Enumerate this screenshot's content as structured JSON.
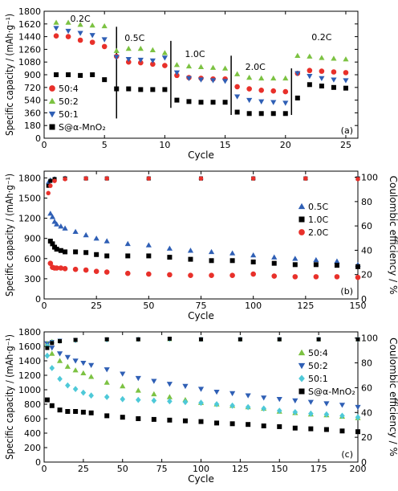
{
  "chart_data": [
    {
      "panel": "(a)",
      "type": "scatter",
      "xlabel": "Cycle",
      "ylabel": "Specific capacity / (mAh·g⁻¹)",
      "xlim": [
        0,
        26
      ],
      "ylim": [
        0,
        1800
      ],
      "xticks": [
        0,
        5,
        10,
        15,
        20,
        25
      ],
      "yticks": [
        0,
        180,
        360,
        540,
        720,
        900,
        1080,
        1260,
        1440,
        1620,
        1800
      ],
      "legend_position": "bottom-left",
      "rate_labels": [
        {
          "text": "0.2C",
          "x": 3,
          "y": 1650
        },
        {
          "text": "0.5C",
          "x": 7.5,
          "y": 1380
        },
        {
          "text": "1.0C",
          "x": 12.5,
          "y": 1150
        },
        {
          "text": "2.0C",
          "x": 17.5,
          "y": 970
        },
        {
          "text": "0.2C",
          "x": 23,
          "y": 1390
        }
      ],
      "dividers": [
        {
          "x": 6,
          "ymin": 280,
          "ymax": 1580
        },
        {
          "x": 10.5,
          "ymin": 430,
          "ymax": 1380
        },
        {
          "x": 15.5,
          "ymin": 330,
          "ymax": 1170
        },
        {
          "x": 20.5,
          "ymin": 330,
          "ymax": 990
        }
      ],
      "series": [
        {
          "name": "50:4",
          "marker": "circle",
          "color": "#e8302a",
          "x": [
            1,
            2,
            3,
            4,
            5,
            6,
            7,
            8,
            9,
            10,
            11,
            12,
            13,
            14,
            15,
            16,
            17,
            18,
            19,
            20,
            21,
            22,
            23,
            24,
            25
          ],
          "y": [
            1450,
            1440,
            1390,
            1360,
            1300,
            1160,
            1080,
            1070,
            1050,
            1030,
            890,
            860,
            850,
            840,
            840,
            730,
            700,
            680,
            670,
            660,
            920,
            960,
            950,
            940,
            930
          ]
        },
        {
          "name": "50:2",
          "marker": "triangle-up",
          "color": "#7cc242",
          "x": [
            1,
            2,
            3,
            4,
            5,
            6,
            7,
            8,
            9,
            10,
            11,
            12,
            13,
            14,
            15,
            16,
            17,
            18,
            19,
            20,
            21,
            22,
            23,
            24,
            25
          ],
          "y": [
            1640,
            1640,
            1610,
            1600,
            1590,
            1240,
            1270,
            1270,
            1250,
            1210,
            1040,
            1020,
            1010,
            1000,
            990,
            910,
            860,
            850,
            850,
            850,
            1170,
            1160,
            1140,
            1130,
            1120
          ]
        },
        {
          "name": "50:1",
          "marker": "triangle-down",
          "color": "#2f5fb5",
          "x": [
            1,
            2,
            3,
            4,
            5,
            6,
            7,
            8,
            9,
            10,
            11,
            12,
            13,
            14,
            15,
            16,
            17,
            18,
            19,
            20,
            21,
            22,
            23,
            24,
            25
          ],
          "y": [
            1560,
            1520,
            1490,
            1460,
            1400,
            1150,
            1120,
            1110,
            1100,
            1140,
            930,
            850,
            830,
            820,
            810,
            590,
            540,
            520,
            510,
            500,
            920,
            880,
            850,
            830,
            820
          ]
        },
        {
          "name": "S@α-MnO₂",
          "marker": "square",
          "color": "#000000",
          "x": [
            1,
            2,
            3,
            4,
            5,
            6,
            7,
            8,
            9,
            10,
            11,
            12,
            13,
            14,
            15,
            16,
            17,
            18,
            19,
            20,
            21,
            22,
            23,
            24,
            25
          ],
          "y": [
            900,
            900,
            890,
            900,
            830,
            700,
            700,
            690,
            690,
            690,
            540,
            520,
            510,
            510,
            510,
            370,
            350,
            350,
            350,
            350,
            570,
            760,
            740,
            720,
            710
          ]
        }
      ]
    },
    {
      "panel": "(b)",
      "type": "scatter",
      "xlabel": "Cycle",
      "ylabel": "Specific capacity / (mAh·g⁻¹)",
      "y2label": "Coulombic efficiency / %",
      "xlim": [
        0,
        150
      ],
      "ylim": [
        0,
        1900
      ],
      "y2lim": [
        0,
        105
      ],
      "xticks": [
        0,
        25,
        50,
        75,
        100,
        125,
        150
      ],
      "yticks": [
        0,
        300,
        600,
        900,
        1200,
        1500,
        1800
      ],
      "y2ticks": [
        0,
        20,
        40,
        60,
        80,
        100
      ],
      "legend_position": "right",
      "series": [
        {
          "name": "0.5C",
          "marker": "triangle-up",
          "color": "#2f5fb5",
          "x": [
            3,
            4,
            5,
            6,
            8,
            10,
            15,
            20,
            25,
            30,
            40,
            50,
            60,
            70,
            80,
            90,
            100,
            110,
            120,
            130,
            140,
            150
          ],
          "y": [
            1270,
            1220,
            1150,
            1110,
            1080,
            1050,
            1000,
            950,
            900,
            860,
            820,
            800,
            750,
            720,
            700,
            680,
            650,
            620,
            600,
            580,
            560,
            510
          ]
        },
        {
          "name": "1.0C",
          "marker": "square",
          "color": "#000000",
          "x": [
            3,
            4,
            5,
            6,
            8,
            10,
            15,
            20,
            25,
            30,
            40,
            50,
            60,
            70,
            80,
            90,
            100,
            110,
            120,
            130,
            140,
            150
          ],
          "y": [
            860,
            820,
            770,
            740,
            720,
            700,
            700,
            690,
            660,
            640,
            640,
            640,
            620,
            590,
            570,
            570,
            550,
            530,
            510,
            510,
            500,
            480
          ]
        },
        {
          "name": "2.0C",
          "marker": "circle",
          "color": "#e8302a",
          "x": [
            3,
            4,
            5,
            6,
            8,
            10,
            15,
            20,
            25,
            30,
            40,
            50,
            60,
            70,
            80,
            90,
            100,
            110,
            120,
            130,
            140,
            150
          ],
          "y": [
            530,
            470,
            460,
            460,
            460,
            450,
            440,
            430,
            410,
            400,
            380,
            370,
            360,
            350,
            350,
            350,
            370,
            340,
            330,
            330,
            330,
            320
          ]
        },
        {
          "name": "0.5C CE",
          "axis": "y2",
          "marker": "triangle-up",
          "color": "#2f5fb5",
          "x": [
            2,
            3,
            5,
            10,
            20,
            30,
            50,
            75,
            100,
            125,
            150
          ],
          "y": [
            96,
            98,
            99,
            99.5,
            99.5,
            99.5,
            99.5,
            99.5,
            99.5,
            99.5,
            99.5
          ]
        },
        {
          "name": "1.0C CE",
          "axis": "y2",
          "marker": "square",
          "color": "#000000",
          "x": [
            2,
            3,
            5,
            10,
            20,
            30,
            50,
            75,
            100,
            125,
            150
          ],
          "y": [
            93,
            97,
            98.5,
            99,
            99,
            99,
            99,
            99,
            99,
            99,
            99
          ]
        },
        {
          "name": "2.0C CE",
          "axis": "y2",
          "marker": "circle",
          "color": "#e8302a",
          "x": [
            2,
            3,
            5,
            10,
            20,
            30,
            50,
            75,
            100,
            125,
            150
          ],
          "y": [
            87,
            93,
            97,
            98.5,
            99,
            99,
            99,
            99,
            99,
            99,
            98.5
          ]
        }
      ]
    },
    {
      "panel": "(c)",
      "type": "scatter",
      "xlabel": "Cycle",
      "ylabel": "Specific capacity / (mAh·g⁻¹)",
      "y2label": "Coulombic efficiency / %",
      "xlim": [
        0,
        200
      ],
      "ylim": [
        0,
        1800
      ],
      "y2lim": [
        0,
        105
      ],
      "xticks": [
        0,
        25,
        50,
        75,
        100,
        125,
        150,
        175,
        200
      ],
      "yticks": [
        0,
        200,
        400,
        600,
        800,
        1000,
        1200,
        1400,
        1600,
        1800
      ],
      "y2ticks": [
        0,
        20,
        40,
        60,
        80,
        100
      ],
      "legend_position": "right",
      "series": [
        {
          "name": "50:4",
          "marker": "triangle-up",
          "color": "#7cc242",
          "x": [
            2,
            5,
            10,
            15,
            20,
            25,
            30,
            40,
            50,
            60,
            70,
            80,
            90,
            100,
            110,
            120,
            130,
            140,
            150,
            160,
            170,
            180,
            190,
            200
          ],
          "y": [
            1620,
            1500,
            1400,
            1320,
            1270,
            1230,
            1180,
            1100,
            1050,
            990,
            940,
            900,
            860,
            820,
            800,
            780,
            760,
            740,
            700,
            680,
            660,
            650,
            630,
            610
          ]
        },
        {
          "name": "50:2",
          "marker": "triangle-down",
          "color": "#2f5fb5",
          "x": [
            2,
            5,
            10,
            15,
            20,
            25,
            30,
            40,
            50,
            60,
            70,
            80,
            90,
            100,
            110,
            120,
            130,
            140,
            150,
            160,
            170,
            180,
            190,
            200
          ],
          "y": [
            1640,
            1580,
            1500,
            1450,
            1400,
            1370,
            1340,
            1280,
            1220,
            1160,
            1120,
            1080,
            1050,
            1010,
            970,
            950,
            920,
            890,
            870,
            850,
            830,
            810,
            790,
            760
          ]
        },
        {
          "name": "50:1",
          "marker": "diamond",
          "color": "#4ec9d8",
          "x": [
            2,
            5,
            10,
            15,
            20,
            25,
            30,
            40,
            50,
            60,
            70,
            80,
            90,
            100,
            110,
            120,
            130,
            140,
            150,
            160,
            170,
            180,
            190,
            200
          ],
          "y": [
            1470,
            1300,
            1150,
            1060,
            1010,
            960,
            920,
            900,
            870,
            860,
            850,
            840,
            830,
            820,
            800,
            780,
            760,
            740,
            710,
            690,
            670,
            660,
            640,
            620
          ]
        },
        {
          "name": "S@α-MnO₂",
          "marker": "square",
          "color": "#000000",
          "x": [
            2,
            5,
            10,
            15,
            20,
            25,
            30,
            40,
            50,
            60,
            70,
            80,
            90,
            100,
            110,
            120,
            130,
            140,
            150,
            160,
            170,
            180,
            190,
            200
          ],
          "y": [
            860,
            780,
            720,
            700,
            700,
            690,
            680,
            640,
            620,
            600,
            590,
            580,
            570,
            560,
            540,
            530,
            520,
            500,
            490,
            470,
            460,
            450,
            430,
            420
          ]
        },
        {
          "name": "50:4 CE",
          "axis": "y2",
          "marker": "triangle-up",
          "color": "#7cc242",
          "x": [
            2,
            5,
            10,
            20,
            40,
            60,
            80,
            100,
            125,
            150,
            175,
            200
          ],
          "y": [
            96,
            97.5,
            98,
            98.5,
            99,
            99,
            99,
            99,
            99,
            99,
            99,
            99
          ]
        },
        {
          "name": "50:2 CE",
          "axis": "y2",
          "marker": "triangle-down",
          "color": "#2f5fb5",
          "x": [
            2,
            5,
            10,
            20,
            40,
            60,
            80,
            100,
            125,
            150,
            175,
            200
          ],
          "y": [
            95,
            97,
            98,
            98.5,
            99,
            99,
            99,
            99,
            99,
            99,
            99,
            99
          ]
        },
        {
          "name": "50:1 CE",
          "axis": "y2",
          "marker": "diamond",
          "color": "#4ec9d8",
          "x": [
            2,
            5,
            10,
            20,
            40,
            60,
            80,
            100,
            125,
            150,
            175,
            200
          ],
          "y": [
            94,
            96.5,
            97.5,
            98,
            98.5,
            99,
            99,
            99,
            99,
            99,
            99,
            99
          ]
        },
        {
          "name": "S@α-MnO₂ CE",
          "axis": "y2",
          "marker": "square",
          "color": "#000000",
          "x": [
            2,
            5,
            10,
            20,
            40,
            60,
            80,
            100,
            125,
            150,
            175,
            200
          ],
          "y": [
            92,
            96,
            97.5,
            98.5,
            99,
            99,
            99.5,
            99,
            99,
            99,
            99,
            99
          ]
        }
      ]
    }
  ]
}
